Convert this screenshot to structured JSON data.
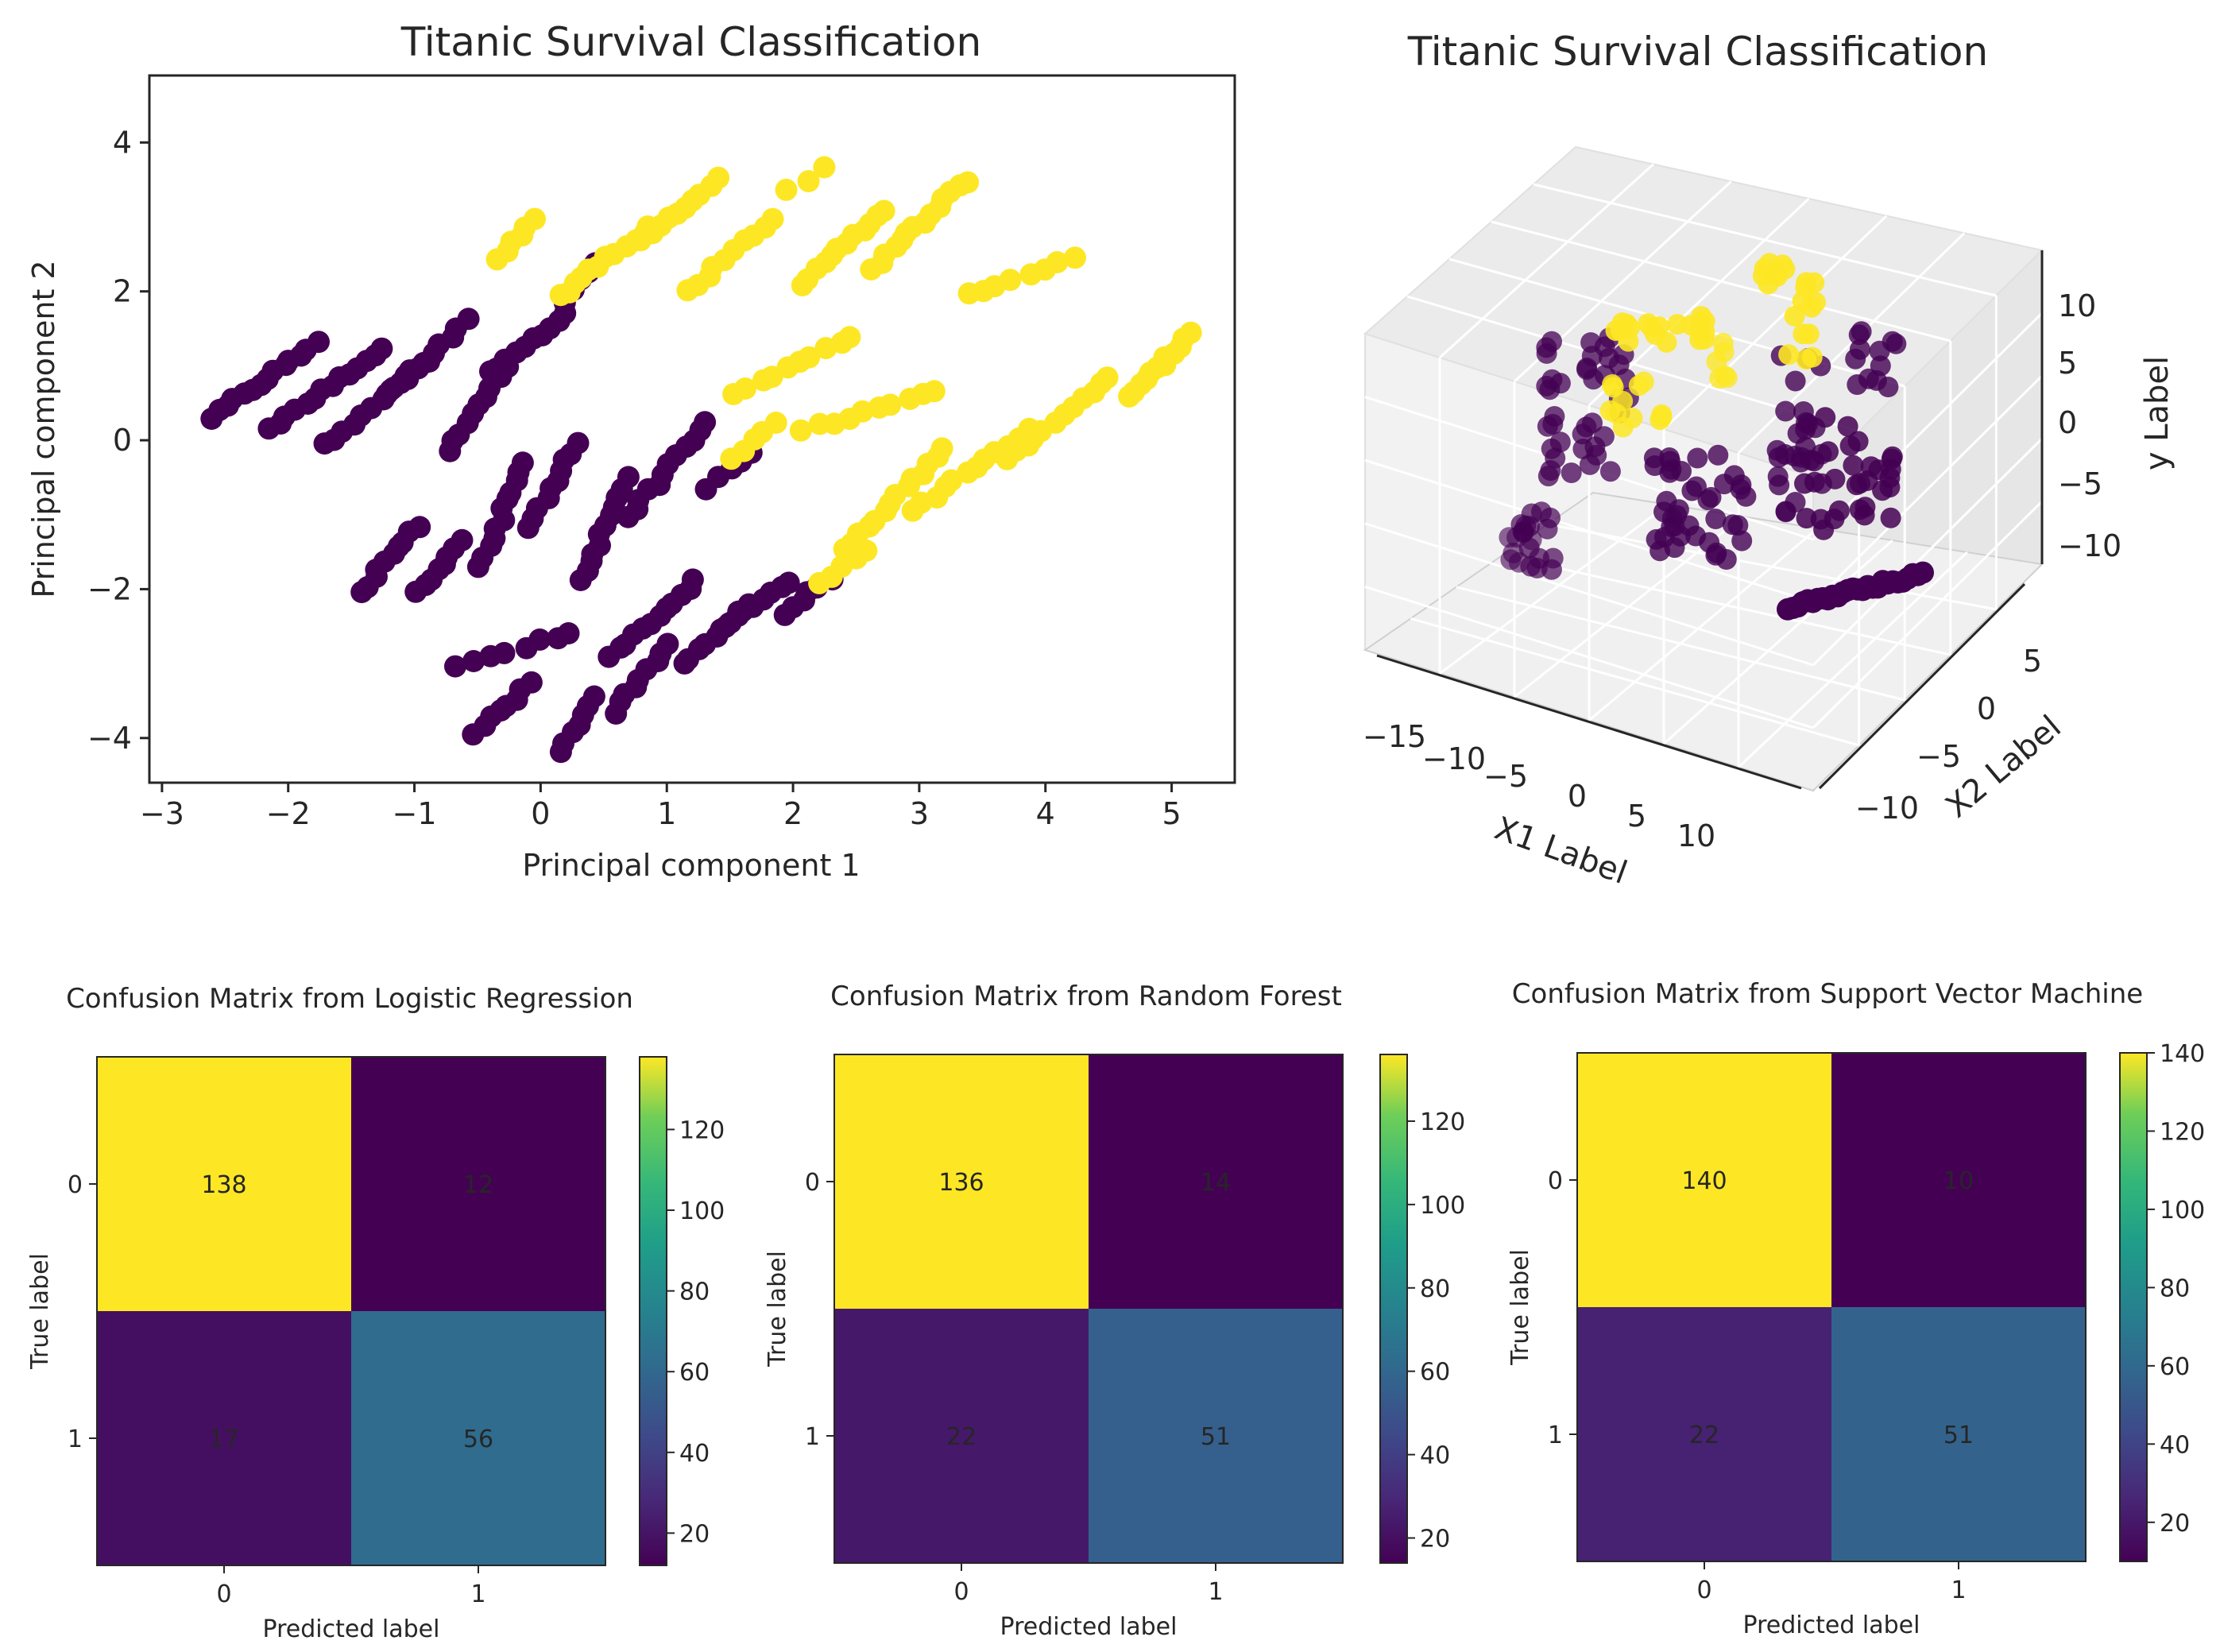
{
  "chart_data": [
    {
      "type": "scatter",
      "title": "Titanic Survival Classification",
      "xlabel": "Principal component 1",
      "ylabel": "Principal component 2",
      "xlim": [
        -3.1,
        5.5
      ],
      "ylim": [
        -4.6,
        4.9
      ],
      "xticks": [
        -3,
        -2,
        -1,
        0,
        1,
        2,
        3,
        4,
        5
      ],
      "yticks": [
        -4,
        -2,
        0,
        2,
        4
      ],
      "grid": false,
      "series": [
        {
          "color": "#440154",
          "clusters": [
            {
              "center": [
                -2.2,
                0.8
              ],
              "dir": [
                1,
                1.2
              ],
              "half": 0.65,
              "n": 14
            },
            {
              "center": [
                -1.7,
                0.7
              ],
              "dir": [
                1,
                1.2
              ],
              "half": 0.7,
              "n": 14
            },
            {
              "center": [
                -1.3,
                0.5
              ],
              "dir": [
                1,
                1.4
              ],
              "half": 0.7,
              "n": 12
            },
            {
              "center": [
                -0.9,
                1.1
              ],
              "dir": [
                1,
                1.6
              ],
              "half": 0.6,
              "n": 10
            },
            {
              "center": [
                -0.5,
                0.4
              ],
              "dir": [
                1,
                2.5
              ],
              "half": 0.6,
              "n": 10
            },
            {
              "center": [
                -0.1,
                1.3
              ],
              "dir": [
                1,
                1.3
              ],
              "half": 0.5,
              "n": 10
            },
            {
              "center": [
                0.1,
                -0.6
              ],
              "dir": [
                1,
                3
              ],
              "half": 0.6,
              "n": 10
            },
            {
              "center": [
                -0.3,
                -1.0
              ],
              "dir": [
                1,
                4
              ],
              "half": 0.7,
              "n": 12
            },
            {
              "center": [
                0.5,
                -1.2
              ],
              "dir": [
                1,
                4
              ],
              "half": 0.7,
              "n": 12
            },
            {
              "center": [
                1.0,
                -0.4
              ],
              "dir": [
                1,
                2
              ],
              "half": 0.7,
              "n": 12
            },
            {
              "center": [
                -1.2,
                -1.6
              ],
              "dir": [
                1,
                2
              ],
              "half": 0.5,
              "n": 10
            },
            {
              "center": [
                -0.8,
                -1.7
              ],
              "dir": [
                1,
                2
              ],
              "half": 0.4,
              "n": 8
            },
            {
              "center": [
                0.9,
                -2.4
              ],
              "dir": [
                1,
                1.5
              ],
              "half": 0.6,
              "n": 12
            },
            {
              "center": [
                1.4,
                -2.6
              ],
              "dir": [
                1,
                1.5
              ],
              "half": 0.5,
              "n": 10
            },
            {
              "center": [
                1.7,
                -2.2
              ],
              "dir": [
                1,
                1.2
              ],
              "half": 0.4,
              "n": 8
            },
            {
              "center": [
                2.1,
                -2.1
              ],
              "dir": [
                1,
                1.3
              ],
              "half": 0.3,
              "n": 6
            },
            {
              "center": [
                -0.3,
                -3.6
              ],
              "dir": [
                1,
                1.4
              ],
              "half": 0.4,
              "n": 8
            },
            {
              "center": [
                0.3,
                -3.8
              ],
              "dir": [
                1,
                2.5
              ],
              "half": 0.4,
              "n": 7
            },
            {
              "center": [
                0.8,
                -3.2
              ],
              "dir": [
                1,
                2
              ],
              "half": 0.5,
              "n": 9
            },
            {
              "center": [
                -0.2,
                -2.8
              ],
              "dir": [
                1,
                0.5
              ],
              "half": 0.5,
              "n": 8
            },
            {
              "center": [
                0.3,
                2.1
              ],
              "dir": [
                1,
                2
              ],
              "half": 0.3,
              "n": 6
            },
            {
              "center": [
                1.5,
                -0.4
              ],
              "dir": [
                1,
                1.2
              ],
              "half": 0.3,
              "n": 5
            }
          ]
        },
        {
          "color": "#fde725",
          "clusters": [
            {
              "center": [
                -0.2,
                2.7
              ],
              "dir": [
                1,
                2
              ],
              "half": 0.3,
              "n": 6
            },
            {
              "center": [
                0.5,
                2.4
              ],
              "dir": [
                1,
                1.3
              ],
              "half": 0.6,
              "n": 12
            },
            {
              "center": [
                1.1,
                3.1
              ],
              "dir": [
                1,
                1.4
              ],
              "half": 0.5,
              "n": 10
            },
            {
              "center": [
                1.5,
                2.5
              ],
              "dir": [
                1,
                1.5
              ],
              "half": 0.6,
              "n": 10
            },
            {
              "center": [
                2.4,
                2.6
              ],
              "dir": [
                1,
                1.6
              ],
              "half": 0.6,
              "n": 12
            },
            {
              "center": [
                3.0,
                2.9
              ],
              "dir": [
                1,
                1.6
              ],
              "half": 0.7,
              "n": 14
            },
            {
              "center": [
                3.8,
                2.2
              ],
              "dir": [
                1,
                0.6
              ],
              "half": 0.5,
              "n": 8
            },
            {
              "center": [
                2.0,
                1.0
              ],
              "dir": [
                1,
                0.8
              ],
              "half": 0.6,
              "n": 10
            },
            {
              "center": [
                2.6,
                0.4
              ],
              "dir": [
                1,
                0.5
              ],
              "half": 0.6,
              "n": 10
            },
            {
              "center": [
                2.8,
                -0.8
              ],
              "dir": [
                1,
                1.7
              ],
              "half": 0.8,
              "n": 14
            },
            {
              "center": [
                3.4,
                -0.4
              ],
              "dir": [
                1,
                1.2
              ],
              "half": 0.7,
              "n": 12
            },
            {
              "center": [
                4.1,
                0.3
              ],
              "dir": [
                1,
                1.4
              ],
              "half": 0.7,
              "n": 12
            },
            {
              "center": [
                4.9,
                1.0
              ],
              "dir": [
                1,
                1.6
              ],
              "half": 0.5,
              "n": 12
            },
            {
              "center": [
                1.7,
                0.0
              ],
              "dir": [
                1,
                1.5
              ],
              "half": 0.3,
              "n": 5
            },
            {
              "center": [
                2.4,
                -1.7
              ],
              "dir": [
                1,
                1.2
              ],
              "half": 0.3,
              "n": 5
            },
            {
              "center": [
                2.1,
                3.5
              ],
              "dir": [
                1,
                1
              ],
              "half": 0.2,
              "n": 3
            }
          ]
        }
      ]
    },
    {
      "type": "scatter",
      "title": "Titanic Survival Classification",
      "xlabel": "X1 Label",
      "ylabel": "X2 Label",
      "zlabel": "y Label",
      "xticks": [
        "−15",
        "−10",
        "−5",
        "0",
        "5",
        "10"
      ],
      "yticks": [
        "5",
        "0",
        "−5",
        "−10"
      ],
      "zticks": [
        "10",
        "5",
        "0",
        "−5",
        "−10"
      ],
      "grid": true
    },
    {
      "type": "heatmap",
      "title": "Confusion Matrix from Logistic Regression",
      "xlabel": "Predicted label",
      "ylabel": "True label",
      "categories": [
        "0",
        "1"
      ],
      "values": [
        [
          138,
          12
        ],
        [
          17,
          56
        ]
      ],
      "colorbar_range": [
        12,
        138
      ],
      "colorbar_ticks": [
        "120",
        "100",
        "80",
        "60",
        "40",
        "20"
      ]
    },
    {
      "type": "heatmap",
      "title": "Confusion Matrix from Random Forest",
      "xlabel": "Predicted label",
      "ylabel": "True label",
      "categories": [
        "0",
        "1"
      ],
      "values": [
        [
          136,
          14
        ],
        [
          22,
          51
        ]
      ],
      "colorbar_range": [
        14,
        136
      ],
      "colorbar_ticks": [
        "120",
        "100",
        "80",
        "60",
        "40",
        "20"
      ]
    },
    {
      "type": "heatmap",
      "title": "Confusion Matrix from Support Vector Machine",
      "xlabel": "Predicted label",
      "ylabel": "True label",
      "categories": [
        "0",
        "1"
      ],
      "values": [
        [
          140,
          10
        ],
        [
          22,
          51
        ]
      ],
      "colorbar_range": [
        10,
        140
      ],
      "colorbar_ticks": [
        "140",
        "120",
        "100",
        "80",
        "60",
        "40",
        "20"
      ]
    }
  ]
}
